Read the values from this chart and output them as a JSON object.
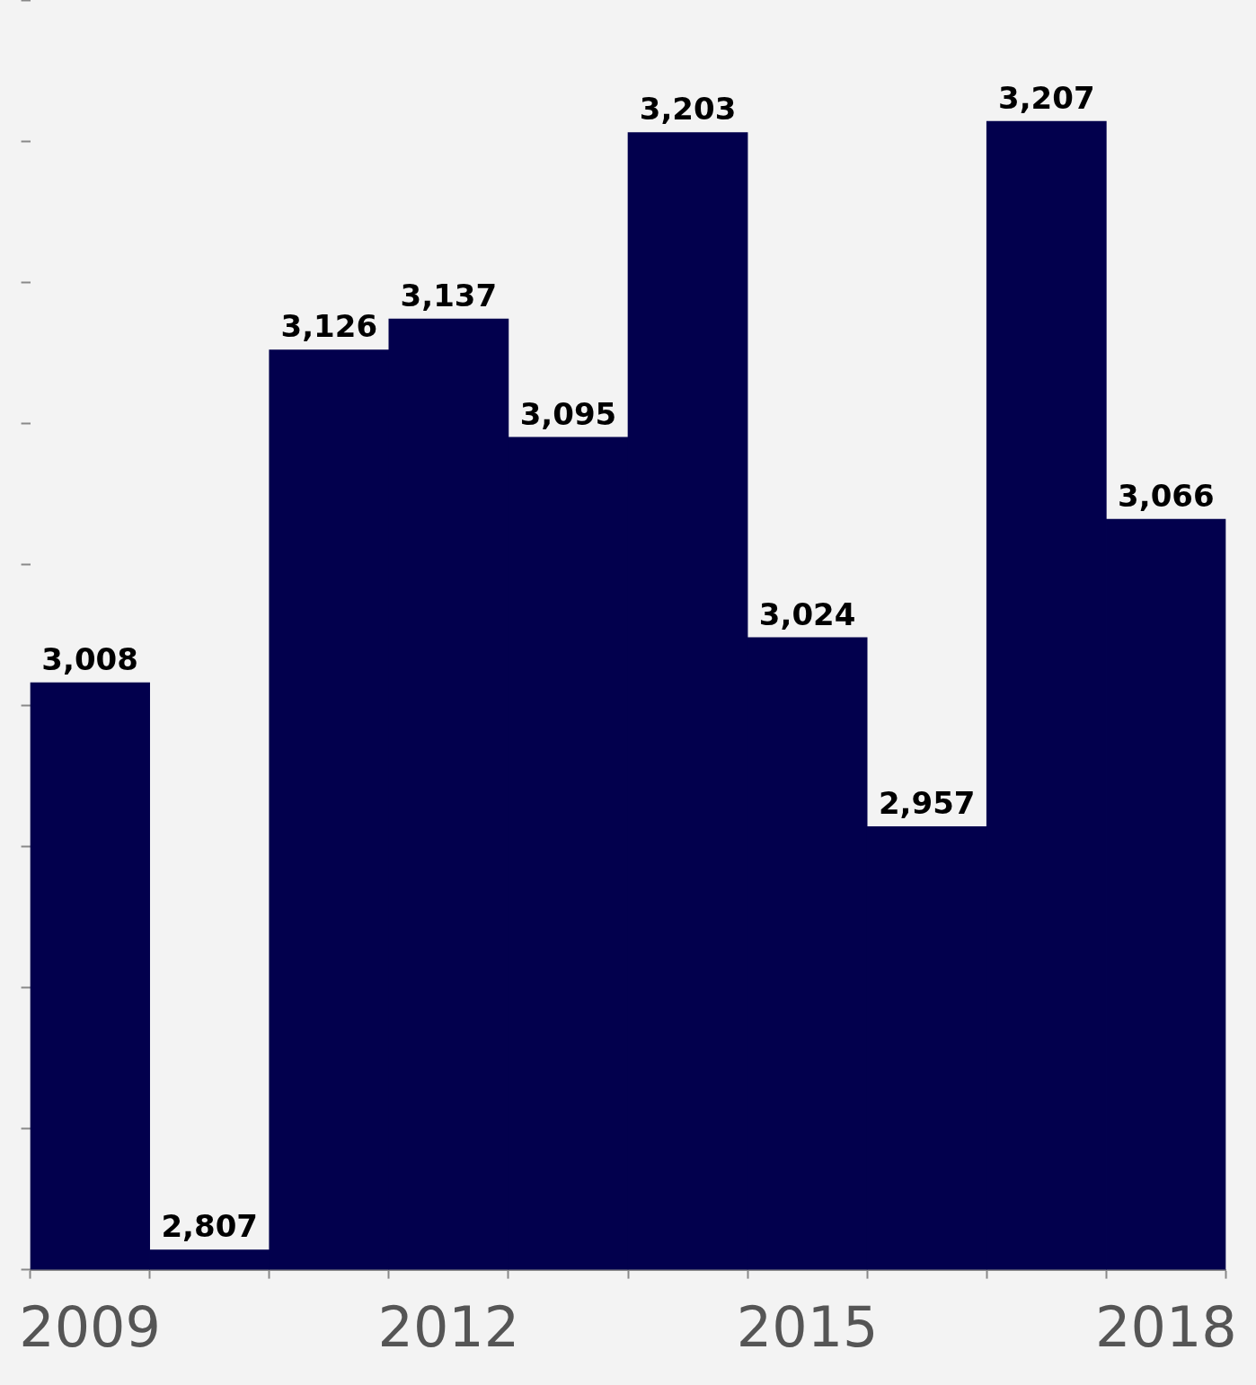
{
  "chart_data": {
    "type": "bar",
    "categories": [
      "2009",
      null,
      null,
      "2012",
      null,
      null,
      "2015",
      null,
      null,
      "2018"
    ],
    "values": [
      3008,
      2807,
      3126,
      3137,
      3095,
      3203,
      3024,
      2957,
      3207,
      3066
    ],
    "value_labels": [
      "3,008",
      "2,807",
      "3,126",
      "3,137",
      "3,095",
      "3,203",
      "3,024",
      "2,957",
      "3,207",
      "3,066"
    ],
    "color": "#02004d",
    "tick_labels": "x",
    "grid": false,
    "legend": false
  }
}
